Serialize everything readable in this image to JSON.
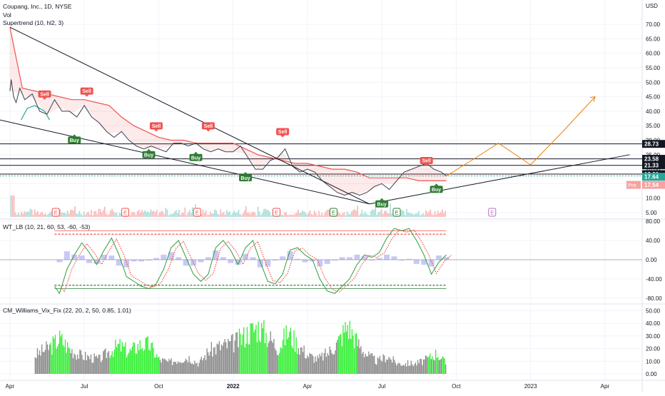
{
  "header": {
    "symbol_line": "Coupang, Inc., 1D, NYSE",
    "vol_label": "Vol",
    "indicator_supertrend": "Supertrend (10, hl2, 3)",
    "indicator_wt": "WT_LB (10, 21, 60, 53, -60, -53)",
    "indicator_vix": "CM_Williams_Vix_Fix (22, 20, 2, 50, 0.85, 1.01)"
  },
  "colors": {
    "up": "#26a69a",
    "down": "#ef5350",
    "line": "#131722",
    "projection": "#f57c00",
    "grid": "#f0f3fa",
    "vix_gray": "#8a8a8a",
    "vix_green": "#33ee33",
    "histogram": "#9c9cf0",
    "pre_market": "#f7a1a1"
  },
  "price_axis": {
    "currency": "USD",
    "ticks": [
      "70.00",
      "65.00",
      "60.00",
      "55.00",
      "50.00",
      "45.00",
      "40.00",
      "35.00",
      "30.00",
      "25.00",
      "20.00",
      "15.00",
      "10.00",
      "5.00"
    ],
    "ylim": [
      5,
      72.5
    ]
  },
  "price_tags": [
    {
      "label": "28.73",
      "value": 28.73,
      "style": "dark"
    },
    {
      "label": "23.58",
      "value": 23.58,
      "style": "dark"
    },
    {
      "label": "21.33",
      "value": 21.33,
      "style": "dark"
    },
    {
      "label": "18.30",
      "value": 18.3,
      "style": "dark"
    },
    {
      "label": "17.64",
      "value": 17.64,
      "style": "green"
    },
    {
      "label": "17.54",
      "value": 17.54,
      "style": "pre",
      "prefix": "Pre"
    }
  ],
  "horizontal_levels": [
    28.73,
    23.58,
    21.33,
    18.3,
    17.64
  ],
  "time_axis": {
    "labels": [
      "Apr",
      "Jul",
      "Oct",
      "2022",
      "Apr",
      "Jul",
      "Oct",
      "2023",
      "Apr"
    ],
    "positions": [
      0,
      3,
      6,
      9,
      12,
      15,
      18,
      21,
      24
    ],
    "bold_index": 3,
    "xlim": [
      -0.4,
      25.5
    ]
  },
  "chart_data": [
    {
      "type": "line",
      "pane": "price",
      "x": [
        0.0,
        0.05,
        0.15,
        0.25,
        0.4,
        0.6,
        0.9,
        1.2,
        1.5,
        1.8,
        2.1,
        2.4,
        2.7,
        3.0,
        3.3,
        3.6,
        3.9,
        4.2,
        4.5,
        4.8,
        5.1,
        5.4,
        5.7,
        6.0,
        6.3,
        6.6,
        6.9,
        7.2,
        7.5,
        7.8,
        8.1,
        8.4,
        8.7,
        9.0,
        9.3,
        9.6,
        9.9,
        10.2,
        10.5,
        10.8,
        11.1,
        11.4,
        11.7,
        12.0,
        12.3,
        12.6,
        12.9,
        13.2,
        13.5,
        13.8,
        14.1,
        14.4,
        14.7,
        15.0,
        15.3,
        15.6,
        15.9,
        16.2,
        16.5,
        16.8,
        17.1,
        17.4,
        17.6
      ],
      "y": [
        47,
        51,
        45,
        43,
        48,
        44,
        46,
        40,
        39,
        44,
        40,
        40,
        38,
        42,
        38,
        36,
        33,
        31,
        33,
        30,
        28,
        27,
        28,
        27,
        26,
        29,
        29,
        28,
        29,
        27,
        26,
        27,
        26,
        26,
        28,
        24,
        20,
        20,
        23,
        24,
        27,
        21,
        19,
        20,
        19,
        16,
        14,
        12,
        11,
        12,
        11,
        12,
        14,
        15,
        13,
        16,
        19,
        20,
        21,
        22,
        20,
        19,
        17.64
      ]
    },
    {
      "type": "line",
      "pane": "price",
      "name": "Supertrend",
      "x": [
        0.0,
        0.5,
        1.0,
        1.5,
        2.0,
        2.5,
        3.0,
        3.5,
        4.0,
        4.5,
        5.0,
        5.5,
        6.0,
        6.5,
        7.0,
        7.5,
        8.0,
        8.5,
        9.0,
        9.5,
        10.0,
        10.5,
        11.0,
        11.5,
        12.0,
        12.5,
        13.0,
        13.5,
        14.0,
        14.5,
        15.0,
        15.5,
        16.0,
        16.5,
        17.0,
        17.6
      ],
      "y": [
        69,
        48,
        47,
        46,
        45,
        44,
        44,
        43,
        42,
        38,
        35,
        33,
        31,
        30,
        30,
        29,
        29,
        29,
        29,
        27,
        25,
        24,
        23,
        22,
        22,
        21,
        20,
        20,
        19,
        17,
        17,
        17,
        17,
        16,
        16,
        16
      ],
      "direction": [
        "down",
        "down",
        "down",
        "down",
        "down",
        "down",
        "down",
        "down",
        "down",
        "down",
        "down",
        "down",
        "down",
        "down",
        "down",
        "down",
        "down",
        "down",
        "down",
        "down",
        "down",
        "down",
        "down",
        "down",
        "down",
        "down",
        "down",
        "down",
        "down",
        "down",
        "down",
        "down",
        "down",
        "down",
        "down",
        "down"
      ]
    },
    {
      "type": "scatter",
      "pane": "price",
      "name": "Signals",
      "points": [
        {
          "x": 1.4,
          "y": 44,
          "label": "Sell"
        },
        {
          "x": 2.6,
          "y": 32,
          "label": "Buy"
        },
        {
          "x": 3.1,
          "y": 45,
          "label": "Sell"
        },
        {
          "x": 5.9,
          "y": 33,
          "label": "Sell"
        },
        {
          "x": 5.6,
          "y": 27,
          "label": "Buy"
        },
        {
          "x": 7.5,
          "y": 26,
          "label": "Buy"
        },
        {
          "x": 8.0,
          "y": 33,
          "label": "Sell"
        },
        {
          "x": 9.5,
          "y": 19,
          "label": "Buy"
        },
        {
          "x": 11.0,
          "y": 31,
          "label": "Sell"
        },
        {
          "x": 15.0,
          "y": 10,
          "label": "Buy"
        },
        {
          "x": 16.8,
          "y": 21,
          "label": "Sell"
        },
        {
          "x": 17.2,
          "y": 15,
          "label": "Buy"
        }
      ]
    },
    {
      "type": "line",
      "pane": "price",
      "name": "Trendlines",
      "lines": [
        {
          "x": [
            0.0,
            14.5
          ],
          "y": [
            69,
            8
          ]
        },
        {
          "x": [
            -0.4,
            14.5
          ],
          "y": [
            37,
            8
          ]
        },
        {
          "x": [
            14.5,
            25.0
          ],
          "y": [
            8,
            25
          ]
        }
      ]
    },
    {
      "type": "line",
      "pane": "price",
      "name": "Projection",
      "x": [
        17.6,
        18.8,
        19.7,
        21.0,
        22.3,
        23.6
      ],
      "y": [
        17.64,
        24,
        29,
        21.5,
        33,
        45
      ]
    },
    {
      "type": "bar",
      "pane": "volume",
      "name": "Vol",
      "earnings_markers": [
        1.85,
        4.65,
        7.55,
        10.75,
        13.05,
        15.6,
        19.45
      ],
      "earnings_label": "E"
    },
    {
      "type": "line",
      "pane": "wt",
      "axis_ticks": [
        "80.00",
        "40.00",
        "0.00",
        "-40.00",
        "-80.00"
      ],
      "ylim": [
        -80,
        80
      ],
      "levels": [
        60,
        53,
        -60,
        -53
      ],
      "x": [
        1.8,
        2.0,
        2.3,
        2.6,
        2.9,
        3.2,
        3.5,
        3.8,
        4.1,
        4.4,
        4.7,
        5.0,
        5.3,
        5.6,
        5.9,
        6.2,
        6.5,
        6.8,
        7.1,
        7.4,
        7.7,
        8.0,
        8.3,
        8.6,
        8.9,
        9.2,
        9.5,
        9.8,
        10.1,
        10.4,
        10.7,
        11.0,
        11.3,
        11.6,
        11.9,
        12.2,
        12.5,
        12.8,
        13.1,
        13.4,
        13.7,
        14.0,
        14.3,
        14.6,
        14.9,
        15.2,
        15.5,
        15.8,
        16.1,
        16.4,
        16.7,
        17.0,
        17.3,
        17.6
      ],
      "y": [
        -55,
        -70,
        -20,
        10,
        35,
        15,
        -10,
        20,
        45,
        10,
        -35,
        -45,
        -55,
        -60,
        -50,
        -20,
        25,
        40,
        5,
        -30,
        -45,
        -30,
        25,
        40,
        20,
        -10,
        25,
        40,
        -5,
        -45,
        -50,
        -30,
        20,
        25,
        10,
        0,
        -40,
        -65,
        -70,
        -55,
        -40,
        -10,
        10,
        5,
        15,
        45,
        65,
        60,
        65,
        40,
        10,
        -30,
        -5,
        10
      ],
      "signal_lag": 0.2
    },
    {
      "type": "bar",
      "pane": "vix",
      "axis_ticks": [
        "50.00",
        "40.00",
        "30.00",
        "20.00",
        "10.00",
        "0.00"
      ],
      "ylim": [
        0,
        52
      ],
      "x": [
        1.0,
        1.6,
        2.0,
        2.4,
        2.8,
        3.2,
        3.6,
        4.0,
        4.4,
        4.8,
        5.2,
        5.6,
        6.0,
        6.4,
        6.8,
        7.2,
        7.6,
        8.0,
        8.4,
        8.8,
        9.2,
        9.6,
        10.0,
        10.4,
        10.8,
        11.2,
        11.6,
        12.0,
        12.4,
        12.8,
        13.2,
        13.6,
        14.0,
        14.4,
        14.8,
        15.2,
        15.6,
        16.0,
        16.4,
        16.8,
        17.2,
        17.6
      ],
      "values": [
        18,
        26,
        34,
        24,
        18,
        16,
        14,
        22,
        27,
        21,
        28,
        28,
        14,
        11,
        14,
        16,
        10,
        22,
        26,
        28,
        32,
        40,
        45,
        36,
        25,
        40,
        28,
        18,
        14,
        20,
        30,
        47,
        30,
        18,
        12,
        17,
        10,
        10,
        10,
        14,
        20,
        9
      ],
      "highlight": [
        false,
        false,
        true,
        false,
        false,
        false,
        false,
        false,
        true,
        false,
        true,
        true,
        false,
        false,
        false,
        false,
        false,
        false,
        false,
        false,
        false,
        true,
        true,
        false,
        false,
        true,
        false,
        false,
        false,
        false,
        false,
        true,
        false,
        false,
        false,
        false,
        false,
        false,
        false,
        false,
        true,
        false
      ]
    }
  ]
}
